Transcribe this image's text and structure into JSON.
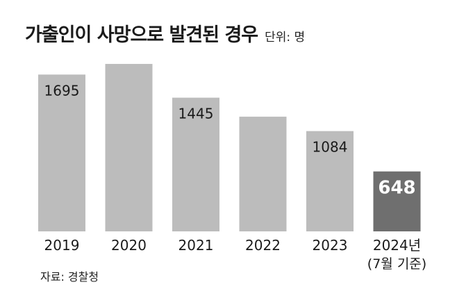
{
  "chart_data": {
    "type": "bar",
    "title": "가출인이 사망으로 발견된 경우",
    "unit": "단위: 명",
    "categories": [
      "2019",
      "2020",
      "2021",
      "2022",
      "2023",
      "2024년"
    ],
    "category_notes": [
      "",
      "",
      "",
      "",
      "",
      "(7월 기준)"
    ],
    "values": [
      1695,
      1810,
      1445,
      1240,
      1084,
      648
    ],
    "data_labels": [
      "1695",
      "",
      "1445",
      "",
      "1084",
      "648"
    ],
    "highlight_index": 5,
    "ylim": [
      0,
      1900
    ],
    "grid": false,
    "legend": "none",
    "colors": {
      "bar": "#bcbcbc",
      "highlight": "#6f6f6f",
      "label_dark": "#1a1a1a",
      "label_light": "#ffffff"
    }
  },
  "source": "자료: 경찰청"
}
